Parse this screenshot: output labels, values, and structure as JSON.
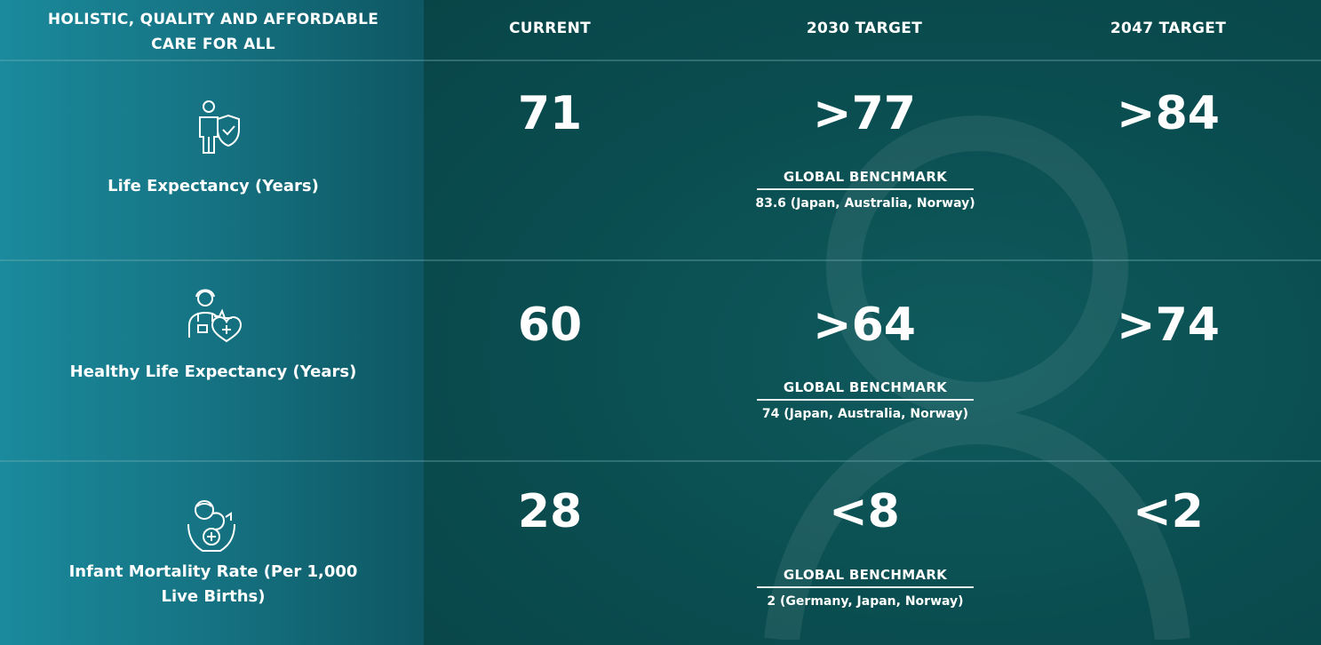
{
  "header": {
    "title": "HOLISTIC, QUALITY AND AFFORDABLE CARE FOR ALL",
    "columns": [
      "CURRENT",
      "2030 TARGET",
      "2047 TARGET"
    ]
  },
  "rows": [
    {
      "label": "Life Expectancy (Years)",
      "icon": "person-shield-icon",
      "current": "71",
      "target_2030": ">77",
      "target_2047": ">84",
      "benchmark_title": "GLOBAL BENCHMARK",
      "benchmark_text": "83.6 (Japan, Australia, Norway)"
    },
    {
      "label": "Healthy Life Expectancy (Years)",
      "icon": "doctor-heart-icon",
      "current": "60",
      "target_2030": ">64",
      "target_2047": ">74",
      "benchmark_title": "GLOBAL BENCHMARK",
      "benchmark_text": "74 (Japan, Australia, Norway)"
    },
    {
      "label": "Infant Mortality Rate (Per 1,000 Live Births)",
      "icon": "infant-care-icon",
      "current": "28",
      "target_2030": "<8",
      "target_2047": "<2",
      "benchmark_title": "GLOBAL BENCHMARK",
      "benchmark_text": "2 (Germany, Japan, Norway)"
    }
  ],
  "colors": {
    "left_panel_start": "#1a8a9c",
    "left_panel_end": "#0e5763",
    "main_background": "#0a4d50",
    "text": "#ffffff"
  }
}
